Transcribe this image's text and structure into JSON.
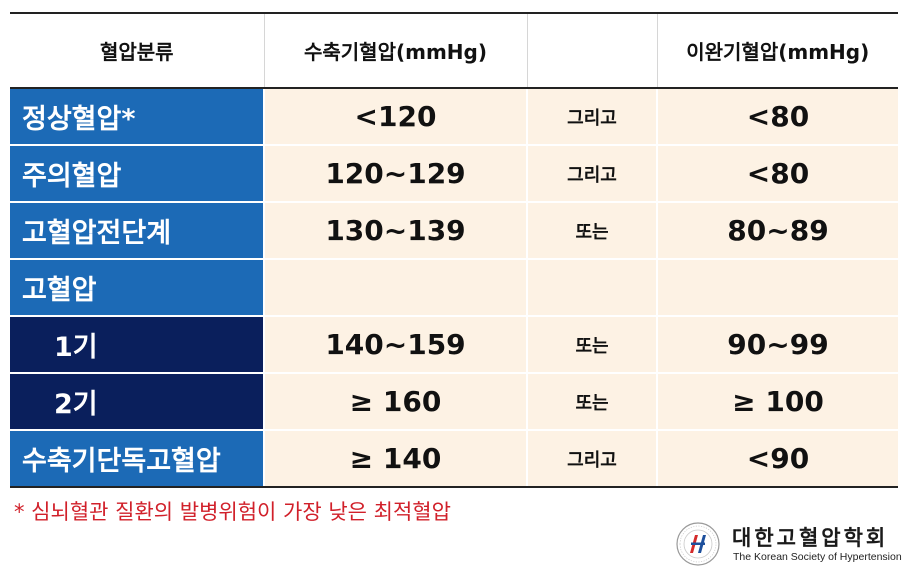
{
  "header": {
    "category": "혈압분류",
    "systolic": "수축기혈압(mmHg)",
    "connector": "",
    "diastolic": "이완기혈압(mmHg)"
  },
  "rows": [
    {
      "category": "정상혈압*",
      "systolic": "<120",
      "connector": "그리고",
      "diastolic": "<80"
    },
    {
      "category": "주의혈압",
      "systolic": "120~129",
      "connector": "그리고",
      "diastolic": "<80"
    },
    {
      "category": "고혈압전단계",
      "systolic": "130~139",
      "connector": "또는",
      "diastolic": "80~89"
    },
    {
      "category": "고혈압",
      "systolic": "",
      "connector": "",
      "diastolic": ""
    },
    {
      "category": "1기",
      "systolic": "140~159",
      "connector": "또는",
      "diastolic": "90~99"
    },
    {
      "category": "2기",
      "systolic": "≥ 160",
      "connector": "또는",
      "diastolic": "≥ 100"
    },
    {
      "category": "수축기단독고혈압",
      "systolic": "≥ 140",
      "connector": "그리고",
      "diastolic": "<90"
    }
  ],
  "footnote": "* 심뇌혈관 질환의 발병위험이 가장 낮은 최적혈압",
  "logo": {
    "name": "대한고혈압학회",
    "name_en": "The Korean Society of Hypertension",
    "seal_text": "대한고혈압학회 KOREAN SOCIETY OF HYPERTENSION"
  },
  "colors": {
    "category_blue": "#1c6ab6",
    "category_navy": "#0a1f5c",
    "cell_bg": "#fdf2e4",
    "footnote_red": "#d1202a"
  }
}
